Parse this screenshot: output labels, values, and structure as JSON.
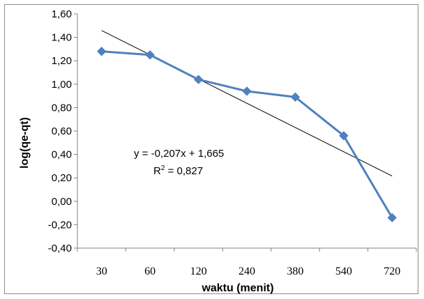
{
  "chart_data": {
    "type": "line",
    "categories": [
      "30",
      "60",
      "120",
      "240",
      "380",
      "540",
      "720"
    ],
    "series": [
      {
        "values": [
          1.28,
          1.25,
          1.04,
          0.94,
          0.89,
          0.56,
          -0.14
        ],
        "color": "#4f81bd",
        "marker": "diamond"
      }
    ],
    "trendline": {
      "slope": -0.207,
      "intercept": 1.665,
      "color": "#000000"
    },
    "annotation": {
      "equation": "y = -0,207x + 1,665",
      "r2_prefix": "R",
      "r2_sup": "2",
      "r2_suffix": " = 0,827"
    },
    "xlabel": "waktu (menit)",
    "ylabel": "log(qe-qt)",
    "ylim": [
      -0.4,
      1.6
    ],
    "yticks": [
      "-0,40",
      "-0,20",
      "0,00",
      "0,20",
      "0,40",
      "0,60",
      "0,80",
      "1,00",
      "1,20",
      "1,40",
      "1,60"
    ],
    "grid": false,
    "legend": "none"
  }
}
